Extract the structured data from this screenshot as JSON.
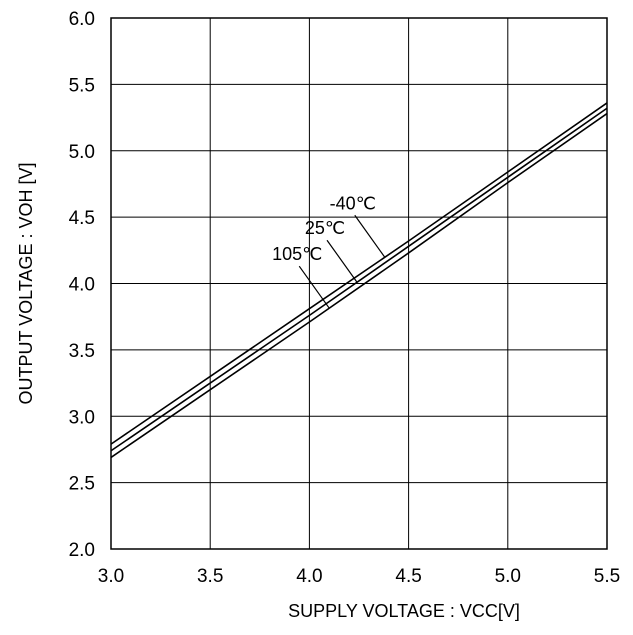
{
  "chart_data": {
    "type": "line",
    "title": "",
    "xlabel": "SUPPLY VOLTAGE : VCC[V]",
    "ylabel": "OUTPUT VOLTAGE  :  VOH [V]",
    "xlim": [
      3.0,
      5.5
    ],
    "ylim": [
      2.0,
      6.0
    ],
    "x_ticks": [
      "3.0",
      "3.5",
      "4.0",
      "4.5",
      "5.0",
      "5.5"
    ],
    "y_ticks": [
      "2.0",
      "2.5",
      "3.0",
      "3.5",
      "4.0",
      "4.5",
      "5.0",
      "5.5",
      "6.0"
    ],
    "grid": true,
    "legend": "none",
    "series": [
      {
        "name": "-40℃",
        "x": [
          3.0,
          3.5,
          4.0,
          4.5,
          5.0,
          5.5
        ],
        "values": [
          2.79,
          3.3,
          3.81,
          4.32,
          4.84,
          5.36
        ]
      },
      {
        "name": "25℃",
        "x": [
          3.0,
          3.5,
          4.0,
          4.5,
          5.0,
          5.5
        ],
        "values": [
          2.74,
          3.25,
          3.76,
          4.28,
          4.8,
          5.32
        ]
      },
      {
        "name": "105℃",
        "x": [
          3.0,
          3.5,
          4.0,
          4.5,
          5.0,
          5.5
        ],
        "values": [
          2.69,
          3.2,
          3.71,
          4.23,
          4.76,
          5.28
        ]
      }
    ],
    "annotations": [
      {
        "text": "-40℃",
        "series": 0,
        "at_x": 4.38
      },
      {
        "text": "25℃",
        "series": 1,
        "at_x": 4.24
      },
      {
        "text": "105℃",
        "series": 2,
        "at_x": 4.1
      }
    ]
  }
}
